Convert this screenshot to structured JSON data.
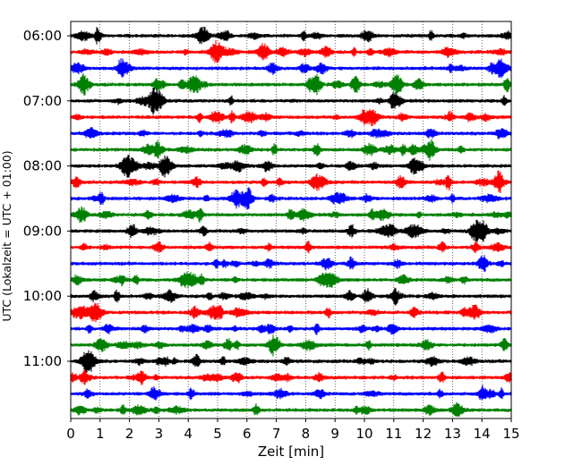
{
  "chart_data": {
    "type": "line",
    "title": "",
    "xlabel": "Zeit  [min]",
    "ylabel": "UTC (Lokalzeit = UTC + 01:00)",
    "xlim": [
      0,
      15
    ],
    "x_ticks": [
      "0",
      "1",
      "2",
      "3",
      "4",
      "5",
      "6",
      "7",
      "8",
      "9",
      "10",
      "11",
      "12",
      "13",
      "14",
      "15"
    ],
    "y_ticks": [
      "06:00",
      "07:00",
      "08:00",
      "09:00",
      "10:00",
      "11:00"
    ],
    "grid": "vertical dotted",
    "trace_interval_minutes": 15,
    "trace_count": 24,
    "first_trace": "06:00",
    "color_cycle": [
      "#000000",
      "#ff0000",
      "#0000ff",
      "#008000"
    ],
    "series": [
      {
        "start": "06:00",
        "color": "#000000"
      },
      {
        "start": "06:15",
        "color": "#ff0000"
      },
      {
        "start": "06:30",
        "color": "#0000ff"
      },
      {
        "start": "06:45",
        "color": "#008000"
      },
      {
        "start": "07:00",
        "color": "#000000"
      },
      {
        "start": "07:15",
        "color": "#ff0000"
      },
      {
        "start": "07:30",
        "color": "#0000ff"
      },
      {
        "start": "07:45",
        "color": "#008000"
      },
      {
        "start": "08:00",
        "color": "#000000"
      },
      {
        "start": "08:15",
        "color": "#ff0000"
      },
      {
        "start": "08:30",
        "color": "#0000ff"
      },
      {
        "start": "08:45",
        "color": "#008000"
      },
      {
        "start": "09:00",
        "color": "#000000"
      },
      {
        "start": "09:15",
        "color": "#ff0000"
      },
      {
        "start": "09:30",
        "color": "#0000ff"
      },
      {
        "start": "09:45",
        "color": "#008000"
      },
      {
        "start": "10:00",
        "color": "#000000"
      },
      {
        "start": "10:15",
        "color": "#ff0000"
      },
      {
        "start": "10:30",
        "color": "#0000ff"
      },
      {
        "start": "10:45",
        "color": "#008000"
      },
      {
        "start": "11:00",
        "color": "#000000"
      },
      {
        "start": "11:15",
        "color": "#ff0000"
      },
      {
        "start": "11:30",
        "color": "#0000ff"
      },
      {
        "start": "11:45",
        "color": "#008000"
      }
    ]
  }
}
